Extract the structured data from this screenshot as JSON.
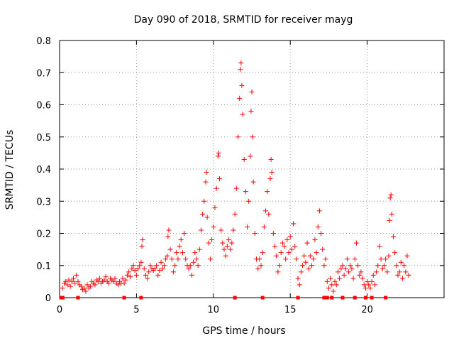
{
  "chart_data": {
    "type": "scatter",
    "title": "Day 090 of 2018, SRMTID for receiver mayg",
    "xlabel": "GPS time / hours",
    "ylabel": "SRMTID / TECUs",
    "xlim": [
      0,
      25
    ],
    "ylim": [
      0,
      0.8
    ],
    "xticks": [
      0,
      5,
      10,
      15,
      20
    ],
    "yticks": [
      0,
      0.1,
      0.2,
      0.3,
      0.4,
      0.5,
      0.6,
      0.7,
      0.8
    ],
    "xtick_labels": [
      "0",
      "5",
      "10",
      "15",
      "20"
    ],
    "ytick_labels": [
      "0",
      "0.1",
      "0.2",
      "0.3",
      "0.4",
      "0.5",
      "0.6",
      "0.7",
      "0.8"
    ],
    "grid": true,
    "marker": "+",
    "series": [
      {
        "name": "SRMTID",
        "color": "#ff0000",
        "points": [
          [
            0.2,
            0.03
          ],
          [
            0.3,
            0.045
          ],
          [
            0.4,
            0.05
          ],
          [
            0.5,
            0.04
          ],
          [
            0.6,
            0.055
          ],
          [
            0.7,
            0.035
          ],
          [
            0.8,
            0.05
          ],
          [
            0.9,
            0.06
          ],
          [
            1.0,
            0.045
          ],
          [
            1.1,
            0.07
          ],
          [
            1.2,
            0.05
          ],
          [
            1.3,
            0.04
          ],
          [
            1.4,
            0.035
          ],
          [
            1.5,
            0.025
          ],
          [
            1.6,
            0.03
          ],
          [
            1.7,
            0.02
          ],
          [
            1.8,
            0.04
          ],
          [
            1.9,
            0.03
          ],
          [
            2.0,
            0.035
          ],
          [
            2.1,
            0.05
          ],
          [
            2.2,
            0.045
          ],
          [
            2.3,
            0.04
          ],
          [
            2.4,
            0.055
          ],
          [
            2.5,
            0.05
          ],
          [
            2.6,
            0.06
          ],
          [
            2.7,
            0.045
          ],
          [
            2.8,
            0.05
          ],
          [
            2.9,
            0.055
          ],
          [
            3.0,
            0.065
          ],
          [
            3.1,
            0.05
          ],
          [
            3.2,
            0.045
          ],
          [
            3.3,
            0.06
          ],
          [
            3.4,
            0.055
          ],
          [
            3.5,
            0.05
          ],
          [
            3.6,
            0.06
          ],
          [
            3.7,
            0.045
          ],
          [
            3.8,
            0.04
          ],
          [
            3.9,
            0.05
          ],
          [
            4.0,
            0.045
          ],
          [
            4.1,
            0.06
          ],
          [
            4.2,
            0.045
          ],
          [
            4.3,
            0.055
          ],
          [
            4.4,
            0.07
          ],
          [
            4.5,
            0.08
          ],
          [
            4.6,
            0.065
          ],
          [
            4.7,
            0.09
          ],
          [
            4.8,
            0.1
          ],
          [
            4.9,
            0.085
          ],
          [
            5.0,
            0.07
          ],
          [
            5.1,
            0.09
          ],
          [
            5.2,
            0.1
          ],
          [
            5.3,
            0.11
          ],
          [
            5.35,
            0.16
          ],
          [
            5.4,
            0.18
          ],
          [
            5.5,
            0.09
          ],
          [
            5.6,
            0.07
          ],
          [
            5.7,
            0.06
          ],
          [
            5.8,
            0.08
          ],
          [
            5.9,
            0.1
          ],
          [
            6.0,
            0.09
          ],
          [
            6.1,
            0.085
          ],
          [
            6.2,
            0.09
          ],
          [
            6.3,
            0.1
          ],
          [
            6.4,
            0.07
          ],
          [
            6.5,
            0.085
          ],
          [
            6.6,
            0.11
          ],
          [
            6.7,
            0.09
          ],
          [
            6.8,
            0.1
          ],
          [
            6.9,
            0.12
          ],
          [
            7.0,
            0.13
          ],
          [
            7.05,
            0.19
          ],
          [
            7.1,
            0.21
          ],
          [
            7.2,
            0.15
          ],
          [
            7.3,
            0.12
          ],
          [
            7.4,
            0.08
          ],
          [
            7.5,
            0.1
          ],
          [
            7.6,
            0.14
          ],
          [
            7.7,
            0.12
          ],
          [
            7.8,
            0.16
          ],
          [
            7.9,
            0.18
          ],
          [
            8.0,
            0.14
          ],
          [
            8.1,
            0.2
          ],
          [
            8.2,
            0.12
          ],
          [
            8.3,
            0.1
          ],
          [
            8.4,
            0.09
          ],
          [
            8.5,
            0.1
          ],
          [
            8.6,
            0.07
          ],
          [
            8.7,
            0.11
          ],
          [
            8.8,
            0.14
          ],
          [
            8.9,
            0.12
          ],
          [
            9.0,
            0.1
          ],
          [
            9.1,
            0.15
          ],
          [
            9.2,
            0.21
          ],
          [
            9.3,
            0.26
          ],
          [
            9.4,
            0.3
          ],
          [
            9.5,
            0.36
          ],
          [
            9.55,
            0.39
          ],
          [
            9.6,
            0.25
          ],
          [
            9.7,
            0.17
          ],
          [
            9.8,
            0.12
          ],
          [
            9.9,
            0.18
          ],
          [
            10.0,
            0.22
          ],
          [
            10.1,
            0.28
          ],
          [
            10.2,
            0.34
          ],
          [
            10.3,
            0.44
          ],
          [
            10.35,
            0.45
          ],
          [
            10.4,
            0.37
          ],
          [
            10.5,
            0.21
          ],
          [
            10.6,
            0.17
          ],
          [
            10.7,
            0.15
          ],
          [
            10.8,
            0.13
          ],
          [
            10.9,
            0.16
          ],
          [
            11.0,
            0.18
          ],
          [
            11.1,
            0.15
          ],
          [
            11.2,
            0.17
          ],
          [
            11.3,
            0.21
          ],
          [
            11.4,
            0.26
          ],
          [
            11.5,
            0.34
          ],
          [
            11.6,
            0.5
          ],
          [
            11.7,
            0.62
          ],
          [
            11.75,
            0.71
          ],
          [
            11.8,
            0.73
          ],
          [
            11.85,
            0.66
          ],
          [
            11.9,
            0.57
          ],
          [
            12.0,
            0.43
          ],
          [
            12.1,
            0.33
          ],
          [
            12.2,
            0.22
          ],
          [
            12.3,
            0.3
          ],
          [
            12.4,
            0.44
          ],
          [
            12.45,
            0.58
          ],
          [
            12.5,
            0.64
          ],
          [
            12.55,
            0.5
          ],
          [
            12.6,
            0.36
          ],
          [
            12.7,
            0.2
          ],
          [
            12.8,
            0.12
          ],
          [
            12.9,
            0.09
          ],
          [
            13.0,
            0.12
          ],
          [
            13.1,
            0.1
          ],
          [
            13.2,
            0.14
          ],
          [
            13.3,
            0.22
          ],
          [
            13.4,
            0.27
          ],
          [
            13.5,
            0.33
          ],
          [
            13.6,
            0.26
          ],
          [
            13.7,
            0.37
          ],
          [
            13.75,
            0.43
          ],
          [
            13.8,
            0.39
          ],
          [
            13.9,
            0.2
          ],
          [
            14.0,
            0.16
          ],
          [
            14.1,
            0.13
          ],
          [
            14.2,
            0.08
          ],
          [
            14.3,
            0.1
          ],
          [
            14.4,
            0.14
          ],
          [
            14.5,
            0.17
          ],
          [
            14.6,
            0.16
          ],
          [
            14.7,
            0.12
          ],
          [
            14.8,
            0.18
          ],
          [
            14.9,
            0.14
          ],
          [
            15.0,
            0.19
          ],
          [
            15.1,
            0.15
          ],
          [
            15.2,
            0.23
          ],
          [
            15.3,
            0.16
          ],
          [
            15.4,
            0.12
          ],
          [
            15.5,
            0.06
          ],
          [
            15.6,
            0.04
          ],
          [
            15.7,
            0.08
          ],
          [
            15.8,
            0.1
          ],
          [
            15.9,
            0.13
          ],
          [
            16.0,
            0.11
          ],
          [
            16.1,
            0.17
          ],
          [
            16.2,
            0.09
          ],
          [
            16.3,
            0.13
          ],
          [
            16.4,
            0.1
          ],
          [
            16.5,
            0.12
          ],
          [
            16.6,
            0.18
          ],
          [
            16.7,
            0.14
          ],
          [
            16.8,
            0.22
          ],
          [
            16.9,
            0.27
          ],
          [
            17.0,
            0.2
          ],
          [
            17.1,
            0.15
          ],
          [
            17.2,
            0.1
          ],
          [
            17.3,
            0.12
          ],
          [
            17.4,
            0.05
          ],
          [
            17.5,
            0.03
          ],
          [
            17.6,
            0.06
          ],
          [
            17.7,
            0.04
          ],
          [
            17.8,
            0.02
          ],
          [
            17.9,
            0.05
          ],
          [
            18.0,
            0.04
          ],
          [
            18.1,
            0.08
          ],
          [
            18.2,
            0.06
          ],
          [
            18.3,
            0.09
          ],
          [
            18.4,
            0.1
          ],
          [
            18.5,
            0.07
          ],
          [
            18.6,
            0.09
          ],
          [
            18.7,
            0.12
          ],
          [
            18.8,
            0.08
          ],
          [
            18.9,
            0.1
          ],
          [
            19.0,
            0.09
          ],
          [
            19.1,
            0.06
          ],
          [
            19.2,
            0.12
          ],
          [
            19.3,
            0.17
          ],
          [
            19.4,
            0.1
          ],
          [
            19.5,
            0.07
          ],
          [
            19.6,
            0.08
          ],
          [
            19.7,
            0.06
          ],
          [
            19.8,
            0.04
          ],
          [
            19.9,
            0.03
          ],
          [
            20.0,
            0.05
          ],
          [
            20.1,
            0.04
          ],
          [
            20.2,
            0.03
          ],
          [
            20.3,
            0.05
          ],
          [
            20.4,
            0.07
          ],
          [
            20.5,
            0.04
          ],
          [
            20.6,
            0.08
          ],
          [
            20.7,
            0.1
          ],
          [
            20.8,
            0.16
          ],
          [
            20.9,
            0.12
          ],
          [
            21.0,
            0.09
          ],
          [
            21.1,
            0.1
          ],
          [
            21.2,
            0.12
          ],
          [
            21.3,
            0.08
          ],
          [
            21.4,
            0.13
          ],
          [
            21.45,
            0.24
          ],
          [
            21.5,
            0.31
          ],
          [
            21.55,
            0.32
          ],
          [
            21.6,
            0.26
          ],
          [
            21.7,
            0.19
          ],
          [
            21.8,
            0.14
          ],
          [
            21.9,
            0.1
          ],
          [
            22.0,
            0.07
          ],
          [
            22.1,
            0.08
          ],
          [
            22.2,
            0.11
          ],
          [
            22.3,
            0.06
          ],
          [
            22.4,
            0.1
          ],
          [
            22.5,
            0.08
          ],
          [
            22.6,
            0.13
          ],
          [
            22.7,
            0.07
          ]
        ]
      }
    ],
    "baseline_markers_x": [
      0.1,
      0.2,
      1.2,
      4.2,
      5.3,
      11.4,
      13.2,
      15.5,
      17.2,
      17.4,
      17.7,
      18.4,
      19.2,
      19.9,
      20.3,
      21.2
    ]
  }
}
